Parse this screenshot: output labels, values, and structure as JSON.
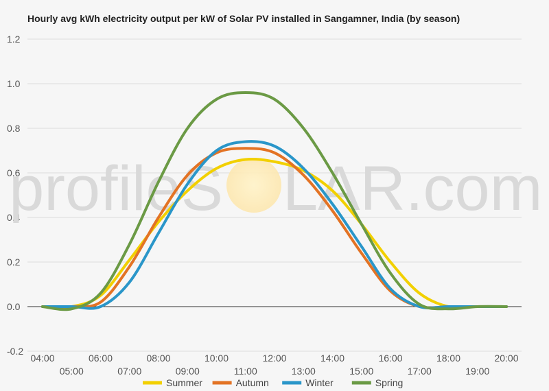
{
  "chart_data": {
    "type": "line",
    "title": "Hourly avg kWh electricity output per kW of Solar PV installed in Sangamner, India (by season)",
    "xlabel": "",
    "ylabel": "",
    "ylim": [
      -0.2,
      1.2
    ],
    "yticks": [
      "-0.2",
      "0.0",
      "0.2",
      "0.4",
      "0.6",
      "0.8",
      "1.0",
      "1.2"
    ],
    "x": [
      "04:00",
      "05:00",
      "06:00",
      "07:00",
      "08:00",
      "09:00",
      "10:00",
      "11:00",
      "12:00",
      "13:00",
      "14:00",
      "15:00",
      "16:00",
      "17:00",
      "18:00",
      "19:00",
      "20:00"
    ],
    "grid": true,
    "legend_position": "bottom",
    "series": [
      {
        "name": "Summer",
        "color": "#f2d000",
        "values": [
          0,
          0,
          0.05,
          0.21,
          0.38,
          0.52,
          0.62,
          0.66,
          0.65,
          0.61,
          0.52,
          0.37,
          0.2,
          0.06,
          0,
          0,
          0
        ]
      },
      {
        "name": "Autumn",
        "color": "#e37324",
        "values": [
          0,
          0,
          0.02,
          0.18,
          0.4,
          0.59,
          0.69,
          0.71,
          0.69,
          0.59,
          0.43,
          0.24,
          0.07,
          0,
          0,
          0,
          0
        ]
      },
      {
        "name": "Winter",
        "color": "#2a96c9",
        "values": [
          0,
          0,
          0,
          0.11,
          0.33,
          0.55,
          0.7,
          0.74,
          0.72,
          0.62,
          0.46,
          0.27,
          0.08,
          0,
          0,
          0,
          0
        ]
      },
      {
        "name": "Spring",
        "color": "#6b9a45",
        "values": [
          0,
          -0.01,
          0.06,
          0.28,
          0.56,
          0.8,
          0.93,
          0.96,
          0.93,
          0.8,
          0.6,
          0.37,
          0.15,
          0.01,
          -0.01,
          0,
          0
        ]
      }
    ],
    "watermark": {
      "left": "profileS",
      "right": "LAR.com"
    }
  }
}
